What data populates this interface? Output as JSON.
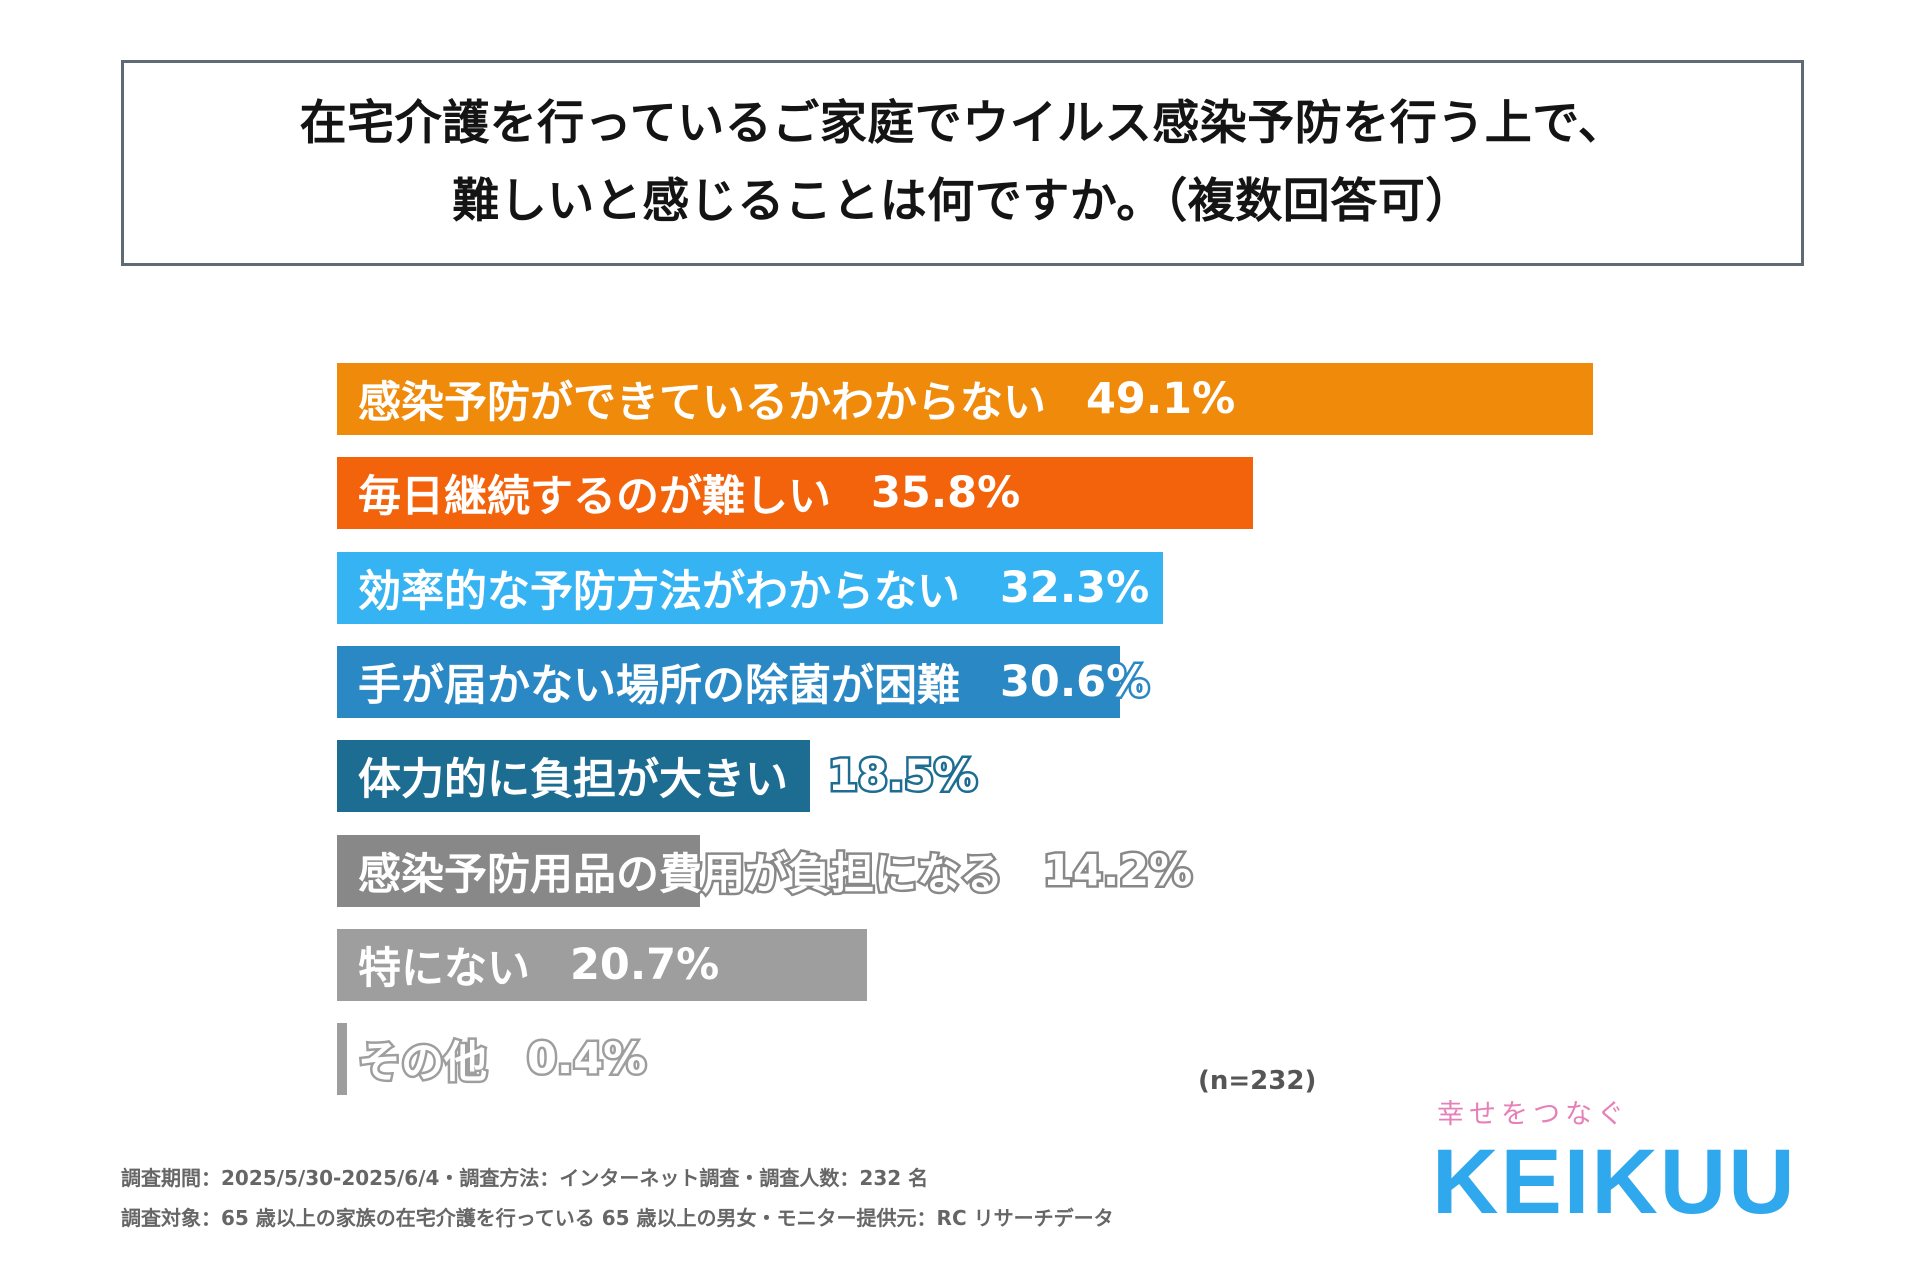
{
  "title_lines": [
    "在宅介護を行っているご家庭でウイルス感染予防を行う上で、",
    "難しいと感じることは何ですか。（複数回答可）"
  ],
  "chart_data": {
    "type": "bar",
    "orientation": "horizontal",
    "title": "在宅介護を行っているご家庭でウイルス感染予防を行う上で、難しいと感じることは何ですか。（複数回答可）",
    "categories": [
      "感染予防ができているかわからない",
      "毎日継続するのが難しい",
      "効率的な予防方法がわからない",
      "手が届かない場所の除菌が困難",
      "体力的に負担が大きい",
      "感染予防用品の費用が負担になる",
      "特にない",
      "その他"
    ],
    "values": [
      49.1,
      35.8,
      32.3,
      30.6,
      18.5,
      14.2,
      20.7,
      0.4
    ],
    "value_labels": [
      "49.1%",
      "35.8%",
      "32.3%",
      "30.6%",
      "18.5%",
      "14.2%",
      "20.7%",
      "0.4%"
    ],
    "colors": [
      "#f08a0b",
      "#f2630b",
      "#36b3f3",
      "#2a88c4",
      "#1d6d92",
      "#888888",
      "#9e9e9e",
      "#9e9e9e"
    ],
    "unit": "%",
    "xlim": [
      0,
      49.1
    ],
    "grid": false,
    "legend": "none"
  },
  "n_note": "(n=232)",
  "footer": {
    "line1": "調査期間：2025/5/30-2025/6/4・調査方法：インターネット調査・調査人数：232 名",
    "line2": "調査対象：65 歳以上の家族の在宅介護を行っている 65 歳以上の男女・モニター提供元：RC リサーチデータ"
  },
  "brand": {
    "tagline": "幸せをつなぐ",
    "logo": "KEIKUU",
    "logo_color": "#2fa8ee",
    "tagline_color": "#e77fb8"
  }
}
